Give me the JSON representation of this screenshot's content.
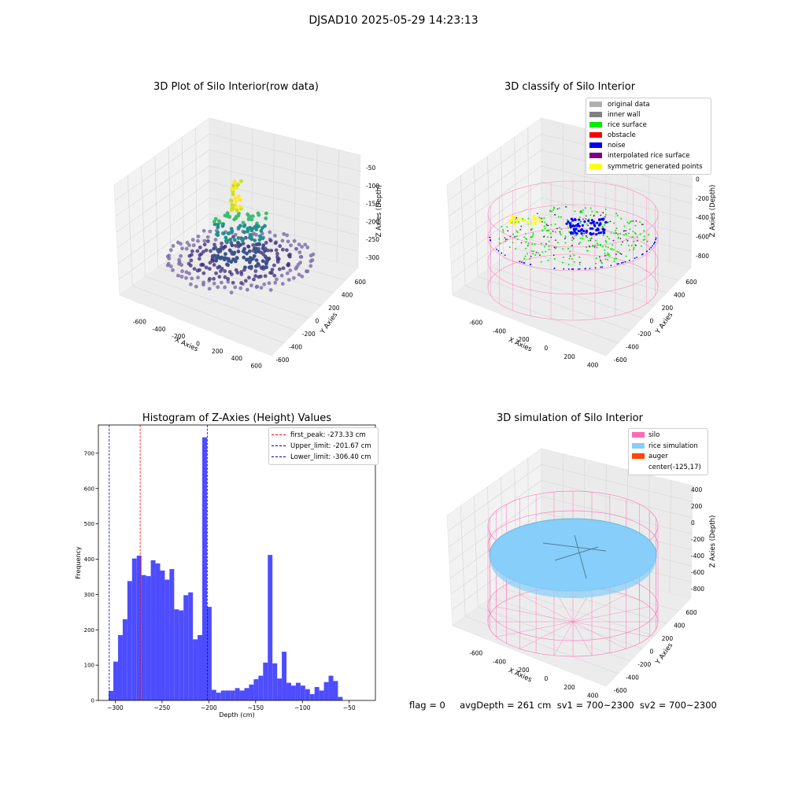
{
  "figure": {
    "suptitle": "DJSAD10 2025-05-29 14:23:13"
  },
  "colors": {
    "hist_bar": "#4d4dff",
    "first_peak": "#ff0000",
    "limits": "#0000cc",
    "silo_wire": "#ff69b4",
    "rice_fill": "#87cefa",
    "original": "#b0b0b0",
    "inner_wall": "#808080",
    "rice_surface": "#00ee00",
    "obstacle": "#ff0000",
    "noise": "#0000ff",
    "interpolated": "#800080",
    "symmetric": "#ffff00",
    "auger": "#ff4500"
  },
  "plot1": {
    "title": "3D Plot of Silo Interior(row data)",
    "xlabel": "X Axies",
    "ylabel": "Y Axies",
    "zlabel": "Z Axies (Depth)",
    "xticks": [
      "-600",
      "-400",
      "-200",
      "0",
      "200",
      "400",
      "600"
    ],
    "yticks": [
      "-600",
      "-400",
      "-200",
      "0",
      "200",
      "400",
      "600"
    ],
    "zticks": [
      "-50",
      "-100",
      "-150",
      "-200",
      "-250",
      "-300"
    ]
  },
  "plot2": {
    "title": "3D classify of Silo Interior",
    "xlabel": "X Axies",
    "ylabel": "Y Axies",
    "zlabel": "Z Axies (Depth)",
    "xticks": [
      "-600",
      "-400",
      "-200",
      "0",
      "200",
      "400"
    ],
    "yticks": [
      "-600",
      "-400",
      "-200",
      "0",
      "200",
      "400",
      "600"
    ],
    "zticks": [
      "200",
      "0",
      "-200",
      "-400",
      "-600",
      "-800"
    ],
    "legend": [
      {
        "label": "original data",
        "color": "#b0b0b0"
      },
      {
        "label": "inner wall",
        "color": "#808080"
      },
      {
        "label": "rice surface",
        "color": "#00ee00"
      },
      {
        "label": "obstacle",
        "color": "#ff0000"
      },
      {
        "label": "noise",
        "color": "#0000ff"
      },
      {
        "label": "interpolated rice surface",
        "color": "#800080"
      },
      {
        "label": "symmetric generated points",
        "color": "#ffff00"
      }
    ]
  },
  "plot4": {
    "title": "3D simulation of Silo Interior",
    "xlabel": "X Axies",
    "ylabel": "Y Axies",
    "zlabel": "Z Axies (Depth)",
    "xticks": [
      "-600",
      "-400",
      "-200",
      "0",
      "200",
      "400"
    ],
    "yticks": [
      "-600",
      "-400",
      "-200",
      "0",
      "200",
      "400",
      "600"
    ],
    "zticks": [
      "400",
      "200",
      "0",
      "-200",
      "-400",
      "-600",
      "-800"
    ],
    "legend": [
      {
        "label": "silo",
        "color": "#ff69b4"
      },
      {
        "label": "rice simulation",
        "color": "#87cefa"
      },
      {
        "label": "auger",
        "color": "#ff4500"
      },
      {
        "label": "center(-125,17)",
        "color": ""
      }
    ]
  },
  "footer": "flag = 0     avgDepth = 261 cm  sv1 = 700~2300  sv2 = 700~2300",
  "chart_data": [
    {
      "type": "bar",
      "title": "Histogram of Z-Axies (Height) Values",
      "xlabel": "Depth (cm)",
      "ylabel": "Frequency",
      "xlim": [
        -318,
        -22
      ],
      "ylim": [
        0,
        780
      ],
      "xticks": [
        -300,
        -250,
        -200,
        -150,
        -100,
        -50
      ],
      "yticks": [
        0,
        100,
        200,
        300,
        400,
        500,
        600,
        700
      ],
      "bin_start": -307,
      "bin_width": 5,
      "values": [
        27,
        110,
        185,
        230,
        338,
        402,
        410,
        355,
        352,
        397,
        388,
        368,
        342,
        372,
        258,
        255,
        298,
        306,
        173,
        185,
        745,
        265,
        30,
        22,
        28,
        28,
        28,
        35,
        28,
        35,
        45,
        60,
        70,
        107,
        412,
        105,
        62,
        138,
        50,
        42,
        50,
        42,
        32,
        18,
        38,
        28,
        52,
        70,
        55,
        10
      ],
      "lines": [
        {
          "label": "first_peak: -273.33 cm",
          "x": -273.33,
          "color": "#ff0000"
        },
        {
          "label": "Upper_limit: -201.67 cm",
          "x": -201.67,
          "color": "#0000cc"
        },
        {
          "label": "Lower_limit: -306.40 cm",
          "x": -306.4,
          "color": "#0000cc"
        }
      ]
    }
  ]
}
